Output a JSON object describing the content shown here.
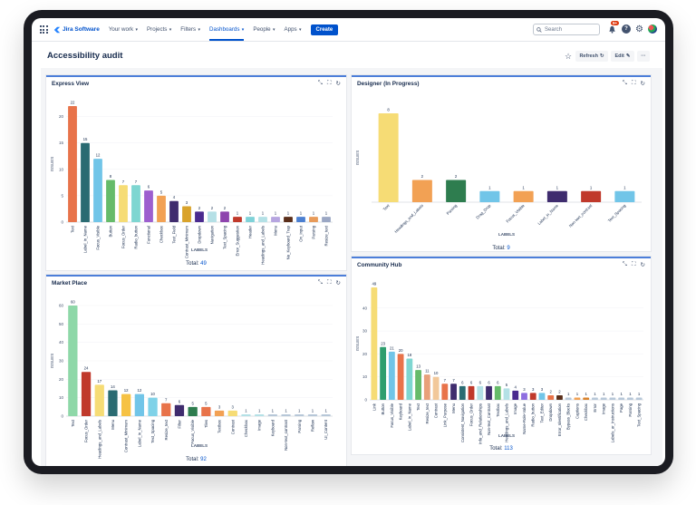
{
  "nav": {
    "product": "Jira Software",
    "items": [
      {
        "label": "Your work",
        "chevron": true,
        "active": false
      },
      {
        "label": "Projects",
        "chevron": true,
        "active": false
      },
      {
        "label": "Filters",
        "chevron": true,
        "active": false
      },
      {
        "label": "Dashboards",
        "chevron": true,
        "active": true
      },
      {
        "label": "People",
        "chevron": true,
        "active": false
      },
      {
        "label": "Apps",
        "chevron": true,
        "active": false
      }
    ],
    "create_label": "Create",
    "search_placeholder": "Search",
    "notification_count": "9+",
    "help_glyph": "?"
  },
  "page": {
    "title": "Accessibility audit",
    "refresh_label": "Refresh",
    "edit_label": "Edit",
    "more_label": "···"
  },
  "colors": {
    "accent": "#0052cc",
    "gadget_border": "#4c7ed9",
    "palette": [
      "#e8734a",
      "#2a6b72",
      "#71c5e8",
      "#66bb6a",
      "#f6dc75",
      "#7ed6d1",
      "#9d5fcf",
      "#f2a154",
      "#3f2c6e",
      "#d9822b",
      "#4a2a8f",
      "#bba6e8",
      "#8e6ee0",
      "#c0392b",
      "#7fd2d8",
      "#b4e1e6",
      "#3b82f6",
      "#5a2e1a",
      "#4b7fd1",
      "#6e2b7b",
      "#b7c7d8",
      "#9ba7c4"
    ]
  },
  "gadgets": [
    {
      "title": "Express View",
      "total_label": "Total:",
      "total_value": "49",
      "chart_data": {
        "type": "bar",
        "ylabel": "ISSUES",
        "xlabel": "LABELS",
        "ylim": [
          0,
          22
        ],
        "yticks": [
          0,
          5,
          10,
          15,
          20
        ],
        "categories": [
          "Text",
          "Label_in_Name",
          "Focus_Visible",
          "Button",
          "Focus_Order",
          "Radio_button",
          "Functional",
          "Checkbox",
          "Text_Field",
          "Contrast_Minimum",
          "Dropdown",
          "Navigation",
          "Text_Spacing",
          "Error_Suggestion",
          "Header",
          "Headings_and_Labels",
          "Menu",
          "No_Keyboard_Trap",
          "On_Input",
          "Parsing",
          "Resize_text"
        ],
        "values": [
          22,
          15,
          12,
          8,
          7,
          7,
          6,
          5,
          4,
          3,
          2,
          2,
          2,
          1,
          1,
          1,
          1,
          1,
          1,
          1,
          1
        ],
        "colors": [
          "#e8734a",
          "#2a6b72",
          "#71c5e8",
          "#66bb6a",
          "#f6dc75",
          "#7ed6d1",
          "#9d5fcf",
          "#f2a154",
          "#3f2c6e",
          "#d9a32b",
          "#4a2a8f",
          "#b5e0e6",
          "#8e44ad",
          "#c0392b",
          "#7fd2d8",
          "#b4e1e6",
          "#b6a5e0",
          "#5a2e1a",
          "#4b7fd1",
          "#e89b5a",
          "#9ba7c4"
        ]
      }
    },
    {
      "title": "Designer (In Progress)",
      "total_label": "Total:",
      "total_value": "9",
      "chart_data": {
        "type": "bar",
        "ylabel": "ISSUES",
        "xlabel": "LABELS",
        "ylim": [
          0,
          8
        ],
        "yticks": [],
        "categories": [
          "Text",
          "Headings_and_Labels",
          "Parsing",
          "Drag_Drop",
          "Focus_Visible",
          "Label_in_Name",
          "Non-text_contrast",
          "Text_Spacing"
        ],
        "values": [
          8,
          2,
          2,
          1,
          1,
          1,
          1,
          1
        ],
        "colors": [
          "#f6dc75",
          "#f2a154",
          "#2e7d4f",
          "#71c5e8",
          "#f2a154",
          "#3f2c6e",
          "#c0392b",
          "#71c5e8"
        ]
      }
    },
    {
      "title": "Market Place",
      "total_label": "Total:",
      "total_value": "92",
      "chart_data": {
        "type": "bar",
        "ylabel": "ISSUES",
        "xlabel": "LABELS",
        "ylim": [
          0,
          60
        ],
        "yticks": [
          0,
          10,
          20,
          30,
          40,
          50,
          60
        ],
        "categories": [
          "Text",
          "Focus_Order",
          "Headings_and_Labels",
          "Menu",
          "Contrast_Minimum",
          "Label_in_Name",
          "Text_Spacing",
          "Resize_text",
          "Filter",
          "Focus_Visible",
          "Tiles",
          "Textbox",
          "Contrast",
          "Checkbox",
          "Image",
          "Keyboard",
          "Non-text_contrast",
          "Parsing",
          "Reflow",
          "UI_Content"
        ],
        "values": [
          60,
          24,
          17,
          14,
          12,
          12,
          10,
          7,
          6,
          5,
          5,
          3,
          3,
          1,
          1,
          1,
          1,
          1,
          1,
          1
        ],
        "colors": [
          "#8ed8a8",
          "#c0392b",
          "#f6dc75",
          "#2a6b72",
          "#f6c244",
          "#71c5e8",
          "#7fd2e8",
          "#e8734a",
          "#3f2c6e",
          "#2e7d4f",
          "#e8734a",
          "#f2a154",
          "#f6dc75",
          "#b4e1e6",
          "#b4e1e6",
          "#b7c7d8",
          "#b7c7d8",
          "#b7c7d8",
          "#b7c7d8",
          "#b7c7d8"
        ]
      }
    },
    {
      "title": "Community Hub",
      "total_label": "Total:",
      "total_value": "113",
      "chart_data": {
        "type": "bar",
        "ylabel": "ISSUES",
        "xlabel": "LABELS",
        "ylim": [
          0,
          49
        ],
        "yticks": [
          0,
          10,
          20,
          30,
          40
        ],
        "categories": [
          "Link",
          "Button",
          "Focus_Visible",
          "Keyboard",
          "Label_in_Name",
          "Text",
          "Resize_text",
          "Contrast",
          "Link_Purpose",
          "Menu",
          "Consistent_Navigation",
          "Focus_Order",
          "Info_and_Relationships",
          "Non-text_Contrast",
          "Textbox",
          "Headings_and_Labels",
          "Image",
          "Name-Role-Value",
          "Radio_button",
          "Text_Editor",
          "Dropdown",
          "Error_Identification",
          "Bypass_Blocks",
          "Captions",
          "Checkbox",
          "Error",
          "Image",
          "Labels_or_Instructions",
          "Page",
          "Parsing",
          "Text_Spacing"
        ],
        "values": [
          49,
          23,
          21,
          20,
          18,
          13,
          11,
          10,
          7,
          7,
          6,
          6,
          6,
          6,
          6,
          5,
          4,
          3,
          3,
          3,
          2,
          2,
          1,
          1,
          1,
          1,
          1,
          1,
          1,
          1,
          1
        ],
        "colors": [
          "#f6dc75",
          "#2e9e6e",
          "#71c5e8",
          "#e8734a",
          "#7ed6d1",
          "#66bb6a",
          "#e8a07a",
          "#f2c89a",
          "#e8734a",
          "#3f2c6e",
          "#2a6b72",
          "#c0392b",
          "#b4e1e6",
          "#3f2c6e",
          "#66bb6a",
          "#b4e1e6",
          "#4a2a8f",
          "#8e6ee0",
          "#c0392b",
          "#71c5e8",
          "#e8734a",
          "#5a2e1a",
          "#b7c7d8",
          "#f2a154",
          "#d9822b",
          "#b7c7d8",
          "#b7c7d8",
          "#b7c7d8",
          "#b7c7d8",
          "#b7c7d8",
          "#b7c7d8"
        ]
      }
    }
  ]
}
